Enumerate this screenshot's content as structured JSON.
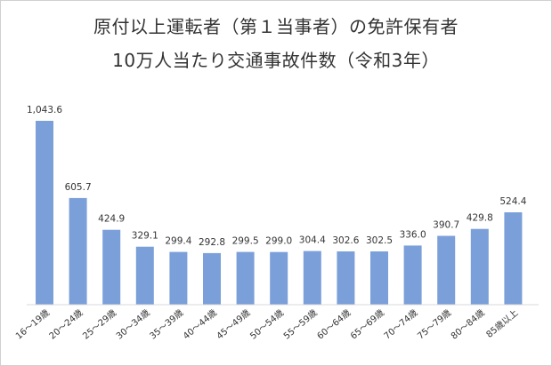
{
  "chart_data": {
    "type": "bar",
    "title": "原付以上運転者（第１当事者）の免許保有者",
    "subtitle": "10万人当たり交通事故件数（令和3年）",
    "categories": [
      "16～19歳",
      "20～24歳",
      "25～29歳",
      "30～34歳",
      "35～39歳",
      "40～44歳",
      "45～49歳",
      "50～54歳",
      "55～59歳",
      "60～64歳",
      "65～69歳",
      "70～74歳",
      "75～79歳",
      "80～84歳",
      "85歳以上"
    ],
    "values": [
      1043.6,
      605.7,
      424.9,
      329.1,
      299.4,
      292.8,
      299.5,
      299.0,
      304.4,
      302.6,
      302.5,
      336.0,
      390.7,
      429.8,
      524.4
    ],
    "value_labels": [
      "1,043.6",
      "605.7",
      "424.9",
      "329.1",
      "299.4",
      "292.8",
      "299.5",
      "299.0",
      "304.4",
      "302.6",
      "302.5",
      "336.0",
      "390.7",
      "429.8",
      "524.4"
    ],
    "bar_color": "#7b9fd9",
    "ylim": [
      0,
      1100
    ],
    "grid": false,
    "legend": "none"
  }
}
